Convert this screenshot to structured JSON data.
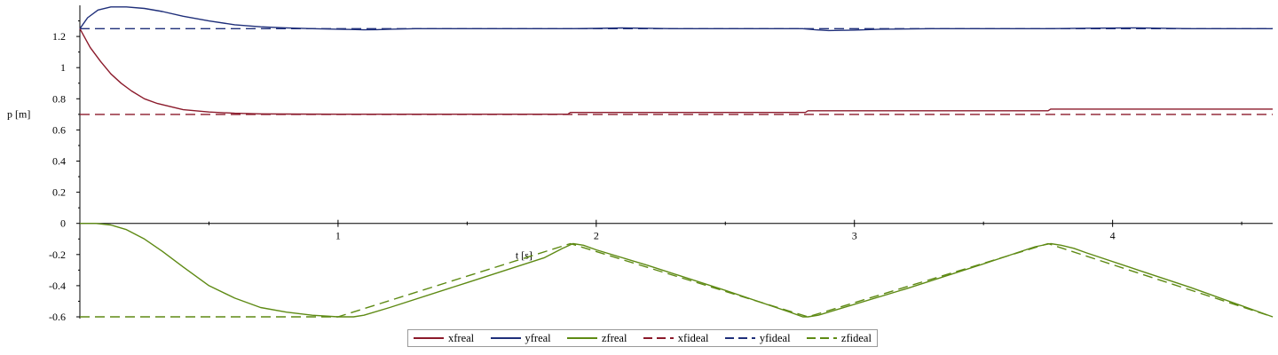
{
  "chart_data": {
    "type": "line",
    "title": "",
    "xlabel": "t [s]",
    "ylabel": "p [m]",
    "xlim": [
      0,
      4.62
    ],
    "ylim": [
      -0.6,
      1.4
    ],
    "x_ticks": [
      1,
      2,
      3,
      4
    ],
    "y_ticks": [
      -0.6,
      -0.4,
      -0.2,
      0,
      0.2,
      0.4,
      0.6,
      0.8,
      1,
      1.2
    ],
    "x_tick_labels": [
      "1",
      "2",
      "3",
      "4"
    ],
    "y_tick_labels": [
      "-0.6",
      "-0.4",
      "-0.2",
      "0",
      "0.2",
      "0.4",
      "0.6",
      "0.8",
      "1",
      "1.2"
    ],
    "grid": false,
    "legend_position": "bottom",
    "series": [
      {
        "name": "xfreal",
        "color": "#8b1a2b",
        "dash": false,
        "x": [
          0,
          0.04,
          0.08,
          0.12,
          0.16,
          0.2,
          0.25,
          0.3,
          0.4,
          0.5,
          0.6,
          0.7,
          0.8,
          1.0,
          1.5,
          1.89,
          1.9,
          2.5,
          2.81,
          2.82,
          3.4,
          3.75,
          3.76,
          4.2,
          4.62
        ],
        "y": [
          1.25,
          1.13,
          1.04,
          0.96,
          0.9,
          0.85,
          0.8,
          0.77,
          0.73,
          0.715,
          0.707,
          0.703,
          0.702,
          0.701,
          0.701,
          0.701,
          0.712,
          0.712,
          0.712,
          0.723,
          0.723,
          0.723,
          0.734,
          0.734,
          0.734
        ]
      },
      {
        "name": "yfreal",
        "color": "#1f2f7a",
        "dash": false,
        "x": [
          0,
          0.03,
          0.07,
          0.12,
          0.18,
          0.25,
          0.32,
          0.4,
          0.5,
          0.6,
          0.7,
          0.8,
          0.9,
          1.0,
          1.05,
          1.1,
          1.15,
          1.2,
          1.3,
          1.9,
          2.0,
          2.1,
          2.3,
          2.8,
          2.85,
          2.9,
          3.0,
          3.1,
          3.3,
          3.75,
          3.9,
          4.1,
          4.3,
          4.62
        ],
        "y": [
          1.25,
          1.32,
          1.37,
          1.39,
          1.39,
          1.38,
          1.36,
          1.33,
          1.3,
          1.275,
          1.262,
          1.255,
          1.25,
          1.247,
          1.245,
          1.243,
          1.244,
          1.247,
          1.25,
          1.25,
          1.252,
          1.255,
          1.25,
          1.25,
          1.243,
          1.238,
          1.241,
          1.247,
          1.25,
          1.25,
          1.253,
          1.255,
          1.25,
          1.25
        ]
      },
      {
        "name": "zfreal",
        "color": "#5e8a14",
        "dash": false,
        "x": [
          0,
          0.06,
          0.12,
          0.18,
          0.25,
          0.32,
          0.4,
          0.5,
          0.6,
          0.7,
          0.8,
          0.9,
          1.0,
          1.03,
          1.06,
          1.1,
          1.2,
          1.5,
          1.8,
          1.87,
          1.91,
          1.95,
          2.0,
          2.2,
          2.5,
          2.75,
          2.8,
          2.82,
          2.86,
          2.9,
          3.2,
          3.5,
          3.7,
          3.76,
          3.8,
          3.85,
          3.9,
          4.1,
          4.3,
          4.62
        ],
        "y": [
          0,
          0,
          -0.01,
          -0.04,
          -0.1,
          -0.18,
          -0.28,
          -0.4,
          -0.48,
          -0.54,
          -0.57,
          -0.59,
          -0.6,
          -0.6,
          -0.6,
          -0.59,
          -0.54,
          -0.38,
          -0.22,
          -0.16,
          -0.13,
          -0.14,
          -0.17,
          -0.27,
          -0.43,
          -0.57,
          -0.6,
          -0.6,
          -0.59,
          -0.57,
          -0.42,
          -0.26,
          -0.15,
          -0.13,
          -0.14,
          -0.16,
          -0.19,
          -0.3,
          -0.41,
          -0.6
        ]
      },
      {
        "name": "xfideal",
        "color": "#8b1a2b",
        "dash": true,
        "x": [
          0,
          4.62
        ],
        "y": [
          0.7,
          0.7
        ]
      },
      {
        "name": "yfideal",
        "color": "#1f2f7a",
        "dash": true,
        "x": [
          0,
          4.62
        ],
        "y": [
          1.25,
          1.25
        ]
      },
      {
        "name": "zfideal",
        "color": "#5e8a14",
        "dash": true,
        "x": [
          0,
          1.0,
          1.9,
          2.82,
          3.75,
          4.62
        ],
        "y": [
          -0.6,
          -0.6,
          -0.13,
          -0.6,
          -0.13,
          -0.6
        ]
      }
    ]
  }
}
